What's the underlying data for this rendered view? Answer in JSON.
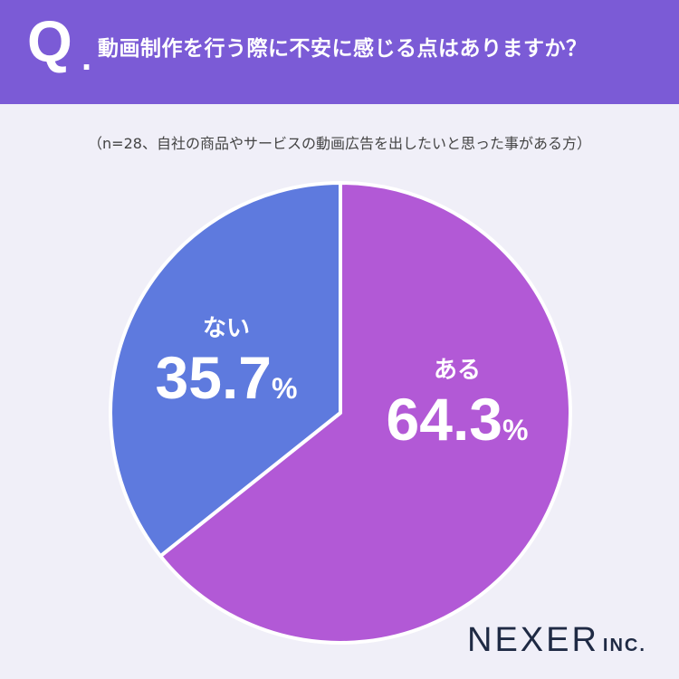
{
  "header": {
    "q_mark": "Q",
    "q_dot": ".",
    "question": "動画制作を行う際に不安に感じる点はありますか？"
  },
  "subtitle": "（n=28、自社の商品やサービスの動画広告を出したいと思った事がある方）",
  "chart_data": {
    "type": "pie",
    "title": "動画制作を行う際に不安に感じる点はありますか？",
    "slices": [
      {
        "label": "ある",
        "value": 64.3,
        "value_text": "64.3",
        "unit": "%",
        "color": "#b259d6"
      },
      {
        "label": "ない",
        "value": 35.7,
        "value_text": "35.7",
        "unit": "%",
        "color": "#5e7ade"
      }
    ],
    "start": "top",
    "direction": "clockwise",
    "separator_color": "#ffffff"
  },
  "logo": {
    "main": "NEXER",
    "inc": "INC."
  },
  "colors": {
    "header_bg": "#7b5bd6",
    "page_bg": "#f0eff8"
  }
}
